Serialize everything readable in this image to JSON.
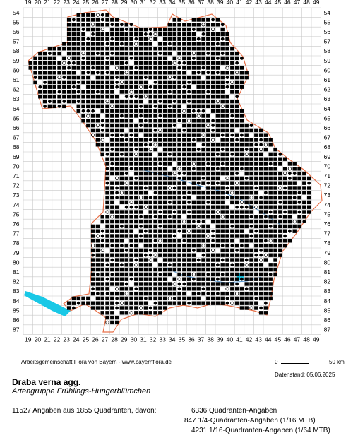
{
  "map": {
    "x_labels": [
      "19",
      "20",
      "21",
      "22",
      "23",
      "24",
      "25",
      "26",
      "27",
      "28",
      "29",
      "30",
      "31",
      "32",
      "33",
      "34",
      "35",
      "36",
      "37",
      "38",
      "39",
      "40",
      "41",
      "42",
      "43",
      "44",
      "45",
      "46",
      "47",
      "48",
      "49"
    ],
    "y_labels": [
      "54",
      "55",
      "56",
      "57",
      "58",
      "59",
      "60",
      "61",
      "62",
      "63",
      "64",
      "65",
      "66",
      "67",
      "68",
      "69",
      "70",
      "71",
      "72",
      "73",
      "74",
      "75",
      "76",
      "77",
      "78",
      "79",
      "80",
      "81",
      "82",
      "83",
      "84",
      "85",
      "86",
      "87"
    ],
    "colors": {
      "grid": "#c8c8c8",
      "border": "#e8724a",
      "river": "#5b9bd5",
      "lake": "#19c8e6",
      "marker": "#000000"
    },
    "legend_symbols": [
      "square-filled",
      "circle-filled",
      "circle-open"
    ]
  },
  "credit": "Arbeitsgemeinschaft Flora von Bayern - www.bayernflora.de",
  "scale": {
    "zero": "0",
    "label": "50 km"
  },
  "status": "Datenstand: 05.06.2025",
  "species": {
    "name": "Draba verna agg.",
    "common": "Artengruppe Frühlings-Hungerblümchen"
  },
  "stats": {
    "summary": "11527 Angaben aus 1855 Quadranten, davon:",
    "lines": [
      "6336 Quadranten-Angaben",
      "847 1/4-Quadranten-Angaben (1/16 MTB)",
      "4231 1/16-Quadranten-Angaben (1/64 MTB)"
    ]
  }
}
